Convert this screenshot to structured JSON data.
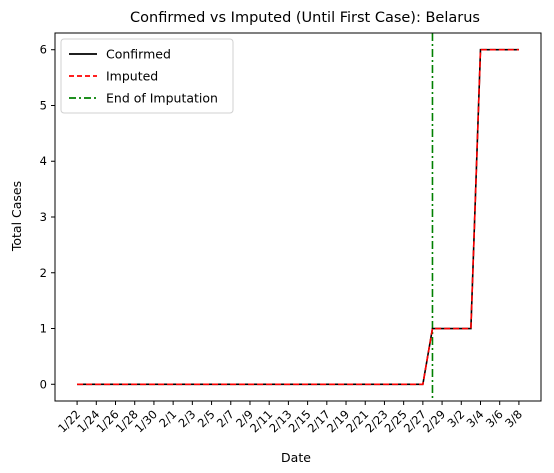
{
  "chart_data": {
    "type": "line",
    "title": "Confirmed vs Imputed (Until First Case): Belarus",
    "xlabel": "Date",
    "ylabel": "Total Cases",
    "x": [
      "1/22",
      "1/23",
      "1/24",
      "1/25",
      "1/26",
      "1/27",
      "1/28",
      "1/29",
      "1/30",
      "1/31",
      "2/1",
      "2/2",
      "2/3",
      "2/4",
      "2/5",
      "2/6",
      "2/7",
      "2/8",
      "2/9",
      "2/10",
      "2/11",
      "2/12",
      "2/13",
      "2/14",
      "2/15",
      "2/16",
      "2/17",
      "2/18",
      "2/19",
      "2/20",
      "2/21",
      "2/22",
      "2/23",
      "2/24",
      "2/25",
      "2/26",
      "2/27",
      "2/28",
      "2/29",
      "3/1",
      "3/2",
      "3/3",
      "3/4",
      "3/5",
      "3/6",
      "3/7",
      "3/8"
    ],
    "xtick_labels": [
      "1/22",
      "1/24",
      "1/26",
      "1/28",
      "1/30",
      "2/1",
      "2/3",
      "2/5",
      "2/7",
      "2/9",
      "2/11",
      "2/13",
      "2/15",
      "2/17",
      "2/19",
      "2/21",
      "2/23",
      "2/25",
      "2/27",
      "2/29",
      "3/2",
      "3/4",
      "3/6",
      "3/8"
    ],
    "yticks": [
      0,
      1,
      2,
      3,
      4,
      5,
      6
    ],
    "ylim": [
      -0.3,
      6.3
    ],
    "grid": false,
    "legend_position": "top-left",
    "series": [
      {
        "name": "Confirmed",
        "color": "#000000",
        "style": "solid",
        "values": [
          0,
          0,
          0,
          0,
          0,
          0,
          0,
          0,
          0,
          0,
          0,
          0,
          0,
          0,
          0,
          0,
          0,
          0,
          0,
          0,
          0,
          0,
          0,
          0,
          0,
          0,
          0,
          0,
          0,
          0,
          0,
          0,
          0,
          0,
          0,
          0,
          0,
          1,
          1,
          1,
          1,
          1,
          6,
          6,
          6,
          6,
          6
        ]
      },
      {
        "name": "Imputed",
        "color": "#ff0000",
        "style": "dashed",
        "values": [
          0,
          0,
          0,
          0,
          0,
          0,
          0,
          0,
          0,
          0,
          0,
          0,
          0,
          0,
          0,
          0,
          0,
          0,
          0,
          0,
          0,
          0,
          0,
          0,
          0,
          0,
          0,
          0,
          0,
          0,
          0,
          0,
          0,
          0,
          0,
          0,
          0,
          1,
          1,
          1,
          1,
          1,
          6,
          6,
          6,
          6,
          6
        ]
      }
    ],
    "vline": {
      "name": "End of Imputation",
      "x": "2/28",
      "color": "#008000",
      "style": "dashdot"
    }
  }
}
